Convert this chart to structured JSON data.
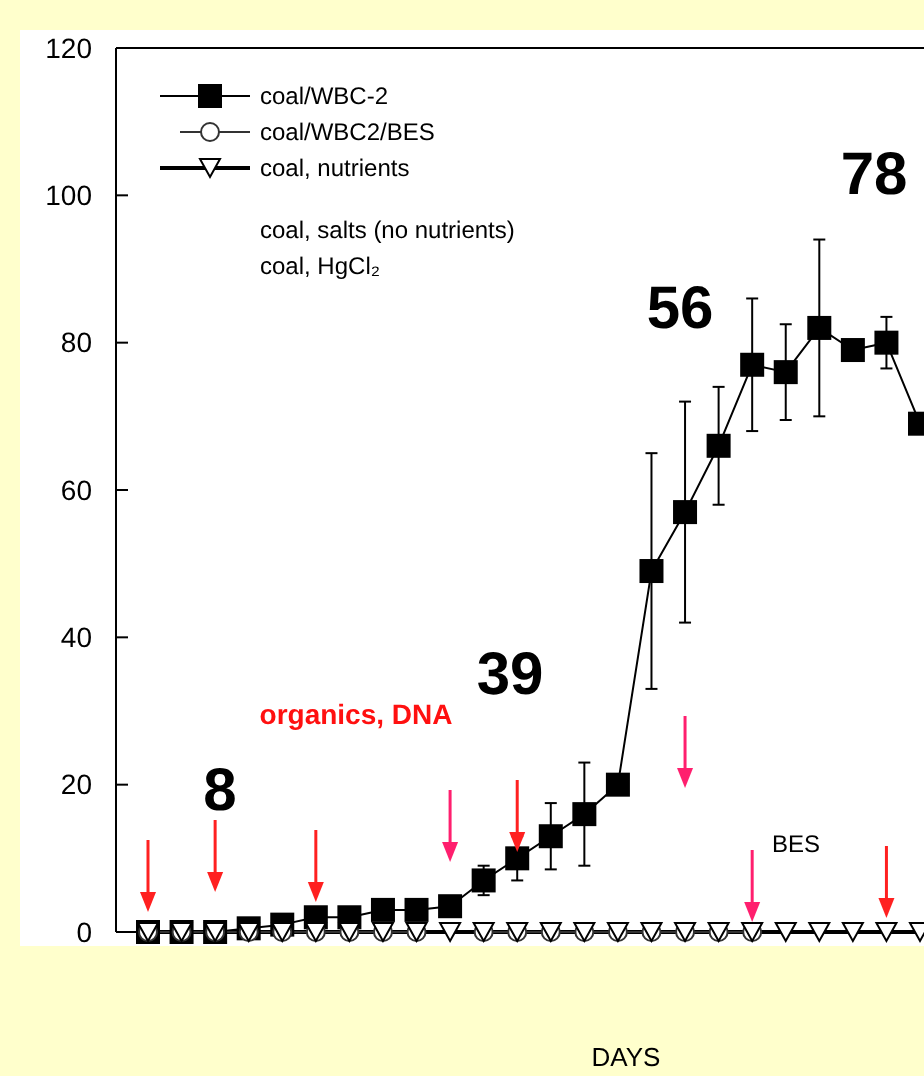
{
  "chart_data": {
    "type": "line",
    "xlabel": "DAYS",
    "categories": [
      null,
      null,
      null,
      null,
      null,
      null,
      null,
      null,
      null,
      null,
      null,
      null,
      null,
      null,
      null,
      null,
      null,
      null,
      null,
      null,
      null,
      null,
      null,
      null
    ],
    "series": [
      {
        "name": "coal/WBC-2",
        "color": "#000000",
        "marker": "square",
        "values": [
          0,
          0,
          0,
          0.5,
          1,
          2,
          2,
          3,
          3,
          3.5,
          7,
          10,
          13,
          16,
          20,
          49,
          57,
          66,
          77,
          76,
          82,
          79,
          80,
          69
        ],
        "errors": [
          null,
          null,
          null,
          null,
          null,
          null,
          null,
          null,
          null,
          null,
          2,
          3,
          4.5,
          7,
          null,
          16,
          15,
          8,
          9,
          6.5,
          12,
          null,
          3.5,
          null
        ]
      },
      {
        "name": "coal/WBC2/BES",
        "color": "#333333",
        "marker": "circle",
        "values": [
          0,
          0,
          0,
          0,
          0,
          0,
          0,
          0,
          0,
          null,
          0,
          0,
          0,
          0,
          0,
          0,
          0,
          0,
          0,
          null,
          null,
          null,
          null,
          null
        ]
      },
      {
        "name": "coal, nutrients",
        "color": "#000000",
        "marker": "triangle",
        "values": [
          0,
          0,
          0,
          0,
          0,
          0,
          0,
          0,
          0,
          0,
          0,
          0,
          0,
          0,
          0,
          0,
          0,
          0,
          0,
          0,
          0,
          0,
          0,
          0
        ]
      }
    ],
    "ylim": [
      0,
      120
    ],
    "yticks": [
      0,
      20,
      40,
      60,
      80,
      100,
      120
    ],
    "legend": "top left",
    "grid": false,
    "annotations": [
      "coal, salts (no nutrients)",
      "coal, HgCl₂",
      "8",
      "organics, DNA",
      "39",
      "56",
      "78",
      "BES"
    ]
  }
}
